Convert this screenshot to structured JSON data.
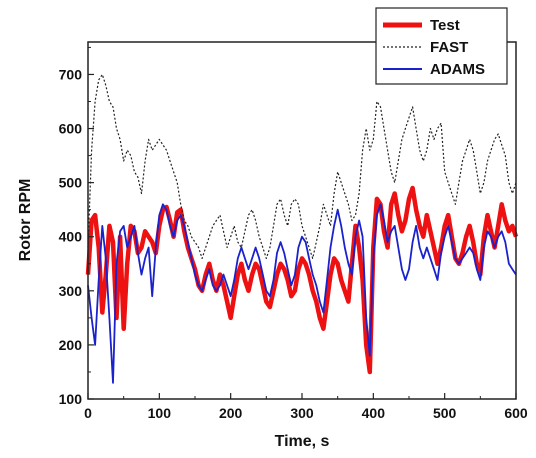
{
  "chart_data": {
    "type": "line",
    "title": "",
    "xlabel": "Time, s",
    "ylabel": "Rotor RPM",
    "xlim": [
      0,
      600
    ],
    "ylim": [
      100,
      760
    ],
    "xticks": [
      0,
      100,
      200,
      300,
      400,
      500,
      600
    ],
    "yticks": [
      100,
      200,
      300,
      400,
      500,
      600,
      700
    ],
    "grid": false,
    "legend_position": "top-right",
    "series": [
      {
        "name": "Test",
        "color": "#ee1111",
        "style": "solid-thick",
        "x": [
          0,
          5,
          10,
          15,
          20,
          25,
          30,
          35,
          40,
          45,
          50,
          55,
          60,
          65,
          70,
          75,
          80,
          85,
          90,
          95,
          100,
          105,
          110,
          115,
          120,
          125,
          130,
          135,
          140,
          145,
          150,
          155,
          160,
          165,
          170,
          175,
          180,
          185,
          190,
          195,
          200,
          205,
          210,
          215,
          220,
          225,
          230,
          235,
          240,
          245,
          250,
          255,
          260,
          265,
          270,
          275,
          280,
          285,
          290,
          295,
          300,
          305,
          310,
          315,
          320,
          325,
          330,
          335,
          340,
          345,
          350,
          355,
          360,
          365,
          370,
          375,
          380,
          385,
          390,
          395,
          400,
          405,
          410,
          415,
          420,
          425,
          430,
          435,
          440,
          445,
          450,
          455,
          460,
          465,
          470,
          475,
          480,
          485,
          490,
          495,
          500,
          505,
          510,
          515,
          520,
          525,
          530,
          535,
          540,
          545,
          550,
          555,
          560,
          565,
          570,
          575,
          580,
          585,
          590,
          595,
          600
        ],
        "values": [
          330,
          430,
          440,
          380,
          260,
          330,
          420,
          390,
          250,
          400,
          230,
          350,
          420,
          410,
          370,
          380,
          410,
          400,
          390,
          370,
          420,
          450,
          455,
          430,
          400,
          445,
          450,
          410,
          380,
          360,
          340,
          310,
          300,
          330,
          350,
          320,
          300,
          330,
          310,
          280,
          250,
          290,
          330,
          350,
          320,
          300,
          330,
          350,
          340,
          310,
          280,
          270,
          300,
          330,
          350,
          340,
          320,
          290,
          300,
          340,
          360,
          350,
          330,
          300,
          280,
          250,
          230,
          280,
          330,
          360,
          350,
          320,
          300,
          280,
          350,
          420,
          380,
          320,
          200,
          150,
          380,
          470,
          460,
          410,
          380,
          460,
          480,
          440,
          410,
          430,
          470,
          490,
          450,
          420,
          400,
          440,
          410,
          380,
          350,
          380,
          420,
          440,
          400,
          360,
          350,
          370,
          400,
          420,
          390,
          350,
          330,
          400,
          440,
          410,
          380,
          420,
          460,
          430,
          410,
          420,
          400
        ]
      },
      {
        "name": "FAST",
        "color": "#222222",
        "style": "dotted",
        "x": [
          0,
          5,
          10,
          15,
          20,
          25,
          30,
          35,
          40,
          45,
          50,
          55,
          60,
          65,
          70,
          75,
          80,
          85,
          90,
          95,
          100,
          105,
          110,
          115,
          120,
          125,
          130,
          135,
          140,
          145,
          150,
          155,
          160,
          165,
          170,
          175,
          180,
          185,
          190,
          195,
          200,
          205,
          210,
          215,
          220,
          225,
          230,
          235,
          240,
          245,
          250,
          255,
          260,
          265,
          270,
          275,
          280,
          285,
          290,
          295,
          300,
          305,
          310,
          315,
          320,
          325,
          330,
          335,
          340,
          345,
          350,
          355,
          360,
          365,
          370,
          375,
          380,
          385,
          390,
          395,
          400,
          405,
          410,
          415,
          420,
          425,
          430,
          435,
          440,
          445,
          450,
          455,
          460,
          465,
          470,
          475,
          480,
          485,
          490,
          495,
          500,
          505,
          510,
          515,
          520,
          525,
          530,
          535,
          540,
          545,
          550,
          555,
          560,
          565,
          570,
          575,
          580,
          585,
          590,
          595,
          600
        ],
        "values": [
          380,
          560,
          650,
          690,
          700,
          680,
          650,
          640,
          600,
          580,
          540,
          560,
          550,
          520,
          510,
          480,
          540,
          580,
          560,
          570,
          580,
          570,
          560,
          540,
          520,
          500,
          460,
          430,
          420,
          400,
          390,
          380,
          360,
          380,
          400,
          420,
          430,
          440,
          410,
          380,
          400,
          420,
          390,
          380,
          410,
          440,
          450,
          430,
          400,
          380,
          360,
          380,
          420,
          460,
          470,
          440,
          420,
          460,
          470,
          460,
          420,
          400,
          380,
          360,
          390,
          420,
          460,
          440,
          420,
          480,
          520,
          500,
          480,
          460,
          430,
          440,
          480,
          560,
          600,
          560,
          580,
          650,
          640,
          600,
          560,
          520,
          500,
          540,
          580,
          600,
          620,
          640,
          600,
          560,
          540,
          560,
          600,
          580,
          600,
          610,
          520,
          500,
          480,
          460,
          500,
          540,
          560,
          580,
          560,
          520,
          480,
          500,
          540,
          560,
          580,
          590,
          570,
          550,
          500,
          480,
          500
        ]
      },
      {
        "name": "ADAMS",
        "color": "#1a22cc",
        "style": "solid",
        "x": [
          0,
          5,
          10,
          15,
          20,
          25,
          30,
          35,
          40,
          45,
          50,
          55,
          60,
          65,
          70,
          75,
          80,
          85,
          90,
          95,
          100,
          105,
          110,
          115,
          120,
          125,
          130,
          135,
          140,
          145,
          150,
          155,
          160,
          165,
          170,
          175,
          180,
          185,
          190,
          195,
          200,
          205,
          210,
          215,
          220,
          225,
          230,
          235,
          240,
          245,
          250,
          255,
          260,
          265,
          270,
          275,
          280,
          285,
          290,
          295,
          300,
          305,
          310,
          315,
          320,
          325,
          330,
          335,
          340,
          345,
          350,
          355,
          360,
          365,
          370,
          375,
          380,
          385,
          390,
          395,
          400,
          405,
          410,
          415,
          420,
          425,
          430,
          435,
          440,
          445,
          450,
          455,
          460,
          465,
          470,
          475,
          480,
          485,
          490,
          495,
          500,
          505,
          510,
          515,
          520,
          525,
          530,
          535,
          540,
          545,
          550,
          555,
          560,
          565,
          570,
          575,
          580,
          585,
          590,
          595,
          600
        ],
        "values": [
          310,
          250,
          200,
          320,
          420,
          360,
          250,
          130,
          350,
          410,
          420,
          380,
          400,
          420,
          370,
          330,
          360,
          380,
          290,
          380,
          440,
          460,
          450,
          420,
          400,
          430,
          440,
          420,
          390,
          360,
          330,
          310,
          300,
          320,
          340,
          310,
          300,
          310,
          330,
          310,
          290,
          320,
          360,
          380,
          360,
          340,
          360,
          380,
          360,
          330,
          300,
          290,
          320,
          370,
          390,
          370,
          340,
          310,
          330,
          380,
          400,
          390,
          360,
          330,
          310,
          280,
          260,
          320,
          380,
          420,
          450,
          420,
          380,
          350,
          330,
          400,
          430,
          400,
          250,
          180,
          360,
          440,
          460,
          430,
          390,
          410,
          420,
          380,
          340,
          320,
          340,
          390,
          420,
          380,
          360,
          380,
          360,
          340,
          320,
          370,
          400,
          420,
          390,
          360,
          350,
          360,
          370,
          380,
          370,
          340,
          320,
          380,
          410,
          400,
          380,
          400,
          410,
          390,
          350,
          340,
          330
        ]
      }
    ]
  }
}
